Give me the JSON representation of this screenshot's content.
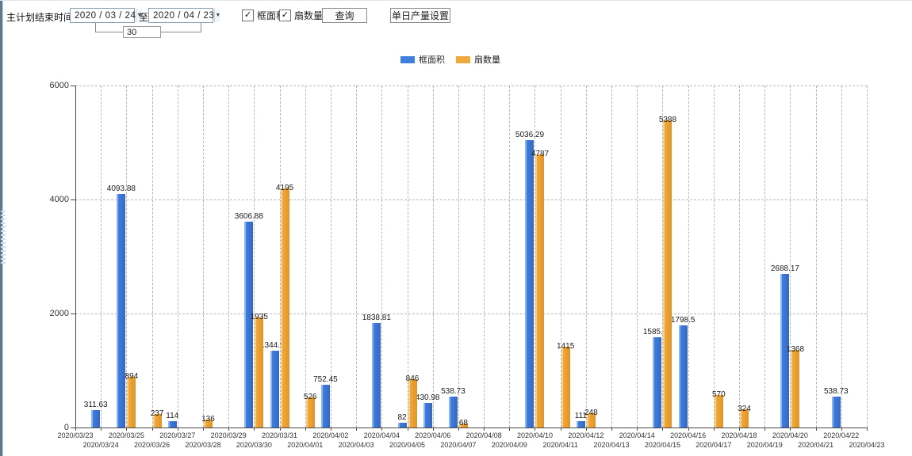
{
  "toolbar": {
    "label_end_time": "主计划结束时间:",
    "date_from": "2020 / 03 / 24",
    "label_to": "至:",
    "date_to": "2020 / 04 / 23",
    "interval_days": "30",
    "checkbox_area": {
      "label": "框面积",
      "checked": true
    },
    "checkbox_fans": {
      "label": "扇数量",
      "checked": true
    },
    "check_glyph": "✓",
    "dropdown_glyph": "▼",
    "query_button": "查询",
    "daily_output_button": "单日产量设置"
  },
  "legend": [
    {
      "label": "框面积",
      "color": "#3f7fdd"
    },
    {
      "label": "扇数量",
      "color": "#f2a93b"
    }
  ],
  "chart_data": {
    "type": "bar",
    "title": "",
    "xlabel": "",
    "ylabel": "",
    "ylim": [
      0,
      6000
    ],
    "yticks": [
      0,
      2000,
      4000,
      6000
    ],
    "grid": true,
    "legend_position": "top-center",
    "categories": [
      "2020/03/23",
      "2020/03/24",
      "2020/03/25",
      "2020/03/26",
      "2020/03/27",
      "2020/03/28",
      "2020/03/29",
      "2020/03/30",
      "2020/03/31",
      "2020/04/01",
      "2020/04/02",
      "2020/04/03",
      "2020/04/04",
      "2020/04/05",
      "2020/04/06",
      "2020/04/07",
      "2020/04/08",
      "2020/04/09",
      "2020/04/10",
      "2020/04/11",
      "2020/04/12",
      "2020/04/13",
      "2020/04/14",
      "2020/04/15",
      "2020/04/16",
      "2020/04/17",
      "2020/04/18",
      "2020/04/19",
      "2020/04/20",
      "2020/04/21",
      "2020/04/22",
      "2020/04/23"
    ],
    "series": [
      {
        "name": "框面积",
        "color": "#3f7fdd",
        "values": [
          null,
          311.63,
          4093.88,
          null,
          114,
          null,
          null,
          3606.88,
          1344.95,
          null,
          752.45,
          null,
          1838.81,
          82,
          430.98,
          538.73,
          null,
          null,
          5036.29,
          null,
          111,
          null,
          null,
          1585.96,
          1798.5,
          null,
          null,
          null,
          2688.17,
          null,
          538.73,
          null
        ]
      },
      {
        "name": "扇数量",
        "color": "#f2a93b",
        "values": [
          null,
          null,
          894,
          237,
          null,
          136,
          null,
          1935,
          4195,
          526,
          null,
          null,
          null,
          846,
          null,
          68,
          null,
          null,
          4787,
          1415,
          248,
          null,
          null,
          5388,
          null,
          570,
          324,
          null,
          1368,
          null,
          null,
          null
        ]
      }
    ]
  }
}
